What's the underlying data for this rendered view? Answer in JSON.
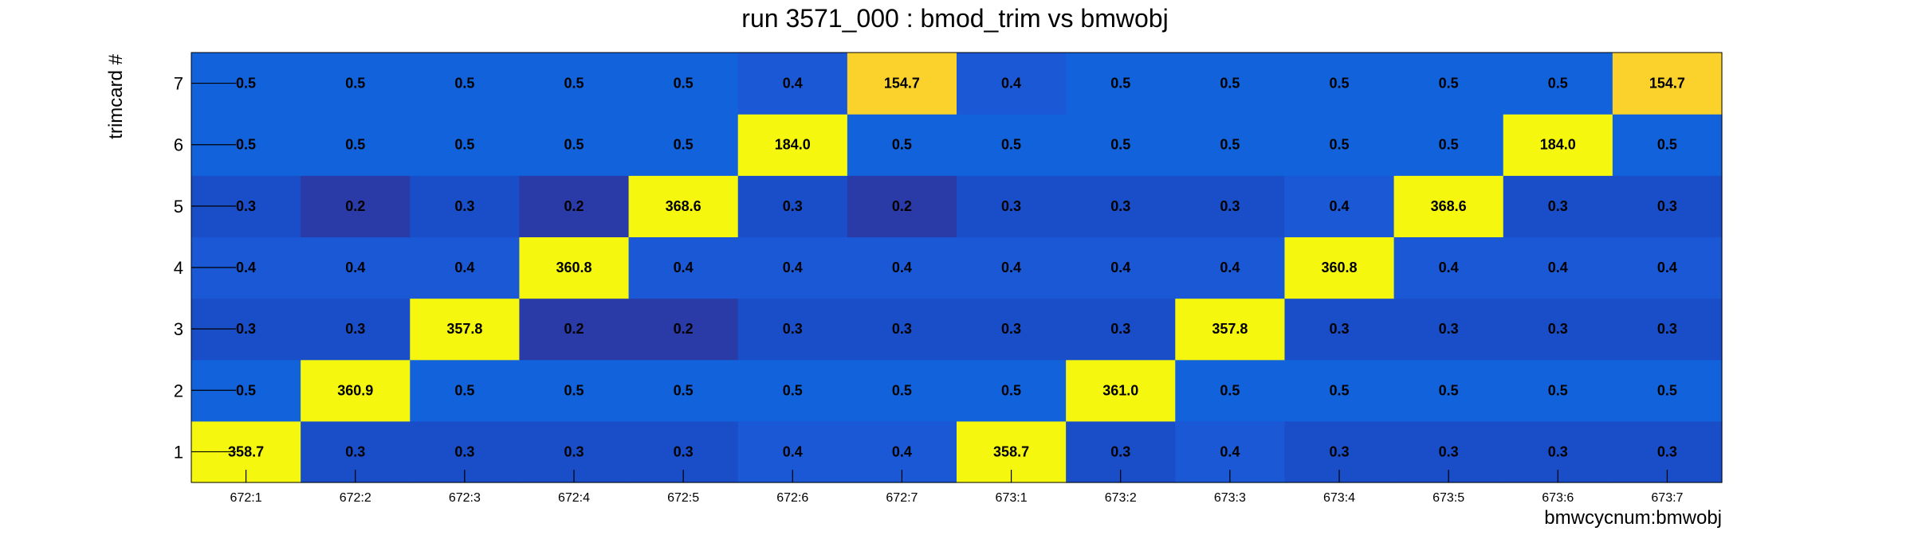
{
  "chart_data": {
    "type": "heatmap",
    "title": "run 3571_000 : bmod_trim vs bmwobj",
    "xlabel": "bmwcycnum:bmwobj",
    "ylabel": "trimcard #",
    "x_categories": [
      "672:1",
      "672:2",
      "672:3",
      "672:4",
      "672:5",
      "672:6",
      "672:7",
      "673:1",
      "673:2",
      "673:3",
      "673:4",
      "673:5",
      "673:6",
      "673:7"
    ],
    "y_categories": [
      "1",
      "2",
      "3",
      "4",
      "5",
      "6",
      "7"
    ],
    "values": [
      [
        "358.7",
        "0.3",
        "0.3",
        "0.3",
        "0.3",
        "0.4",
        "0.4",
        "358.7",
        "0.3",
        "0.4",
        "0.3",
        "0.3",
        "0.3",
        "0.3"
      ],
      [
        "0.5",
        "360.9",
        "0.5",
        "0.5",
        "0.5",
        "0.5",
        "0.5",
        "0.5",
        "361.0",
        "0.5",
        "0.5",
        "0.5",
        "0.5",
        "0.5"
      ],
      [
        "0.3",
        "0.3",
        "357.8",
        "0.2",
        "0.2",
        "0.3",
        "0.3",
        "0.3",
        "0.3",
        "357.8",
        "0.3",
        "0.3",
        "0.3",
        "0.3"
      ],
      [
        "0.4",
        "0.4",
        "0.4",
        "360.8",
        "0.4",
        "0.4",
        "0.4",
        "0.4",
        "0.4",
        "0.4",
        "360.8",
        "0.4",
        "0.4",
        "0.4"
      ],
      [
        "0.3",
        "0.2",
        "0.3",
        "0.2",
        "368.6",
        "0.3",
        "0.2",
        "0.3",
        "0.3",
        "0.3",
        "0.4",
        "368.6",
        "0.3",
        "0.3"
      ],
      [
        "0.5",
        "0.5",
        "0.5",
        "0.5",
        "0.5",
        "184.0",
        "0.5",
        "0.5",
        "0.5",
        "0.5",
        "0.5",
        "0.5",
        "184.0",
        "0.5"
      ],
      [
        "0.5",
        "0.5",
        "0.5",
        "0.5",
        "0.5",
        "0.4",
        "154.7",
        "0.4",
        "0.5",
        "0.5",
        "0.5",
        "0.5",
        "0.5",
        "154.7"
      ]
    ],
    "colorscale": {
      "0.2": "#2a3aa6",
      "0.3": "#1a4ec8",
      "0.4": "#1a58d6",
      "0.5": "#1262dc",
      "high": "#f5f80e",
      "mid": "#fbd22c"
    },
    "grid": false,
    "legend": "none"
  }
}
